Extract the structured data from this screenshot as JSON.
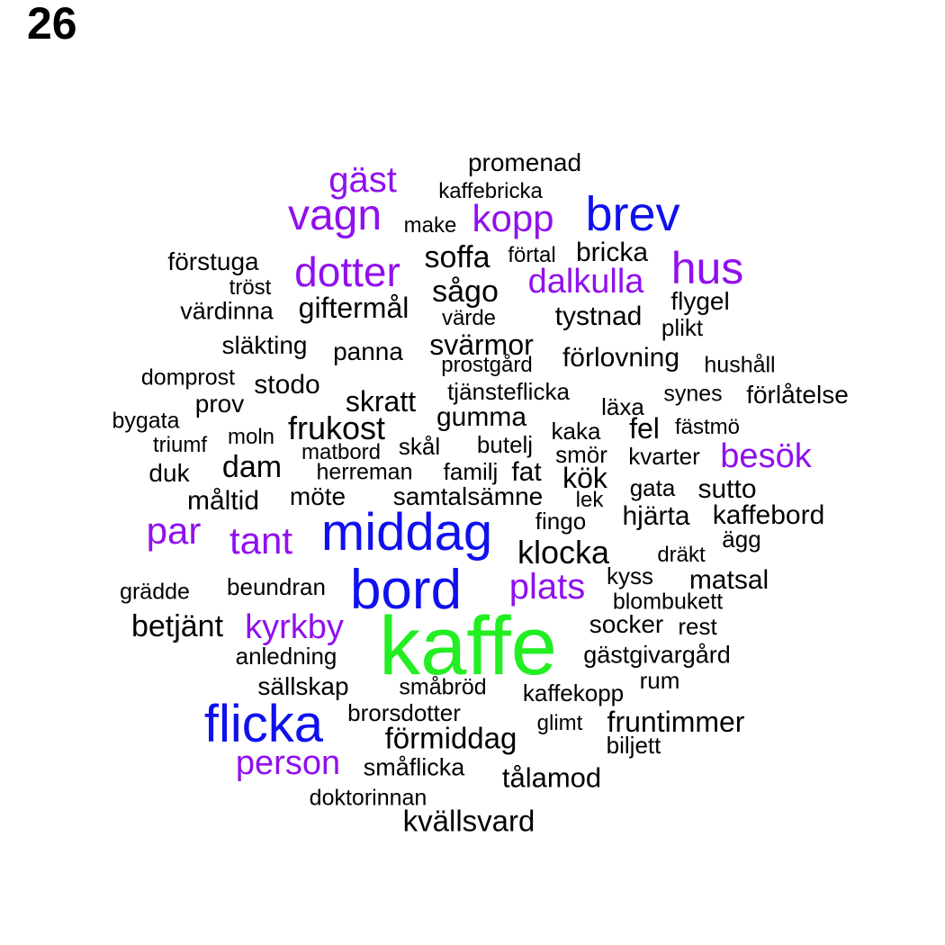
{
  "page_number": "26",
  "colors": {
    "top": "#22ee22",
    "high": "#1010ee",
    "mid": "#9010ee",
    "low": "#000000"
  },
  "words": [
    {
      "text": "kaffe",
      "tier": "top"
    },
    {
      "text": "bord",
      "tier": "high"
    },
    {
      "text": "middag",
      "tier": "high"
    },
    {
      "text": "flicka",
      "tier": "high"
    },
    {
      "text": "brev",
      "tier": "high"
    },
    {
      "text": "vagn",
      "tier": "mid"
    },
    {
      "text": "kopp",
      "tier": "mid"
    },
    {
      "text": "dotter",
      "tier": "mid"
    },
    {
      "text": "hus",
      "tier": "mid"
    },
    {
      "text": "gäst",
      "tier": "mid"
    },
    {
      "text": "dalkulla",
      "tier": "mid"
    },
    {
      "text": "par",
      "tier": "mid"
    },
    {
      "text": "tant",
      "tier": "mid"
    },
    {
      "text": "plats",
      "tier": "mid"
    },
    {
      "text": "kyrkby",
      "tier": "mid"
    },
    {
      "text": "person",
      "tier": "mid"
    },
    {
      "text": "besök",
      "tier": "mid"
    },
    {
      "text": "promenad",
      "tier": "low"
    },
    {
      "text": "kaffebricka",
      "tier": "low"
    },
    {
      "text": "make",
      "tier": "low"
    },
    {
      "text": "soffa",
      "tier": "low"
    },
    {
      "text": "förtal",
      "tier": "low"
    },
    {
      "text": "bricka",
      "tier": "low"
    },
    {
      "text": "förstuga",
      "tier": "low"
    },
    {
      "text": "tröst",
      "tier": "low"
    },
    {
      "text": "sågo",
      "tier": "low"
    },
    {
      "text": "flygel",
      "tier": "low"
    },
    {
      "text": "värdinna",
      "tier": "low"
    },
    {
      "text": "giftermål",
      "tier": "low"
    },
    {
      "text": "värde",
      "tier": "low"
    },
    {
      "text": "tystnad",
      "tier": "low"
    },
    {
      "text": "plikt",
      "tier": "low"
    },
    {
      "text": "släkting",
      "tier": "low"
    },
    {
      "text": "panna",
      "tier": "low"
    },
    {
      "text": "svärmor",
      "tier": "low"
    },
    {
      "text": "förlovning",
      "tier": "low"
    },
    {
      "text": "prostgård",
      "tier": "low"
    },
    {
      "text": "hushåll",
      "tier": "low"
    },
    {
      "text": "domprost",
      "tier": "low"
    },
    {
      "text": "stodo",
      "tier": "low"
    },
    {
      "text": "tjänsteflicka",
      "tier": "low"
    },
    {
      "text": "synes",
      "tier": "low"
    },
    {
      "text": "förlåtelse",
      "tier": "low"
    },
    {
      "text": "prov",
      "tier": "low"
    },
    {
      "text": "skratt",
      "tier": "low"
    },
    {
      "text": "läxa",
      "tier": "low"
    },
    {
      "text": "bygata",
      "tier": "low"
    },
    {
      "text": "gumma",
      "tier": "low"
    },
    {
      "text": "fel",
      "tier": "low"
    },
    {
      "text": "fästmö",
      "tier": "low"
    },
    {
      "text": "frukost",
      "tier": "low"
    },
    {
      "text": "kaka",
      "tier": "low"
    },
    {
      "text": "moln",
      "tier": "low"
    },
    {
      "text": "triumf",
      "tier": "low"
    },
    {
      "text": "skål",
      "tier": "low"
    },
    {
      "text": "butelj",
      "tier": "low"
    },
    {
      "text": "smör",
      "tier": "low"
    },
    {
      "text": "kvarter",
      "tier": "low"
    },
    {
      "text": "matbord",
      "tier": "low"
    },
    {
      "text": "dam",
      "tier": "low"
    },
    {
      "text": "duk",
      "tier": "low"
    },
    {
      "text": "herreman",
      "tier": "low"
    },
    {
      "text": "familj",
      "tier": "low"
    },
    {
      "text": "fat",
      "tier": "low"
    },
    {
      "text": "kök",
      "tier": "low"
    },
    {
      "text": "gata",
      "tier": "low"
    },
    {
      "text": "sutto",
      "tier": "low"
    },
    {
      "text": "möte",
      "tier": "low"
    },
    {
      "text": "måltid",
      "tier": "low"
    },
    {
      "text": "samtalsämne",
      "tier": "low"
    },
    {
      "text": "lek",
      "tier": "low"
    },
    {
      "text": "hjärta",
      "tier": "low"
    },
    {
      "text": "kaffebord",
      "tier": "low"
    },
    {
      "text": "fingo",
      "tier": "low"
    },
    {
      "text": "ägg",
      "tier": "low"
    },
    {
      "text": "klocka",
      "tier": "low"
    },
    {
      "text": "dräkt",
      "tier": "low"
    },
    {
      "text": "kyss",
      "tier": "low"
    },
    {
      "text": "matsal",
      "tier": "low"
    },
    {
      "text": "beundran",
      "tier": "low"
    },
    {
      "text": "grädde",
      "tier": "low"
    },
    {
      "text": "blombukett",
      "tier": "low"
    },
    {
      "text": "betjänt",
      "tier": "low"
    },
    {
      "text": "socker",
      "tier": "low"
    },
    {
      "text": "rest",
      "tier": "low"
    },
    {
      "text": "anledning",
      "tier": "low"
    },
    {
      "text": "gästgivargård",
      "tier": "low"
    },
    {
      "text": "rum",
      "tier": "low"
    },
    {
      "text": "sällskap",
      "tier": "low"
    },
    {
      "text": "småbröd",
      "tier": "low"
    },
    {
      "text": "kaffekopp",
      "tier": "low"
    },
    {
      "text": "brorsdotter",
      "tier": "low"
    },
    {
      "text": "glimt",
      "tier": "low"
    },
    {
      "text": "fruntimmer",
      "tier": "low"
    },
    {
      "text": "förmiddag",
      "tier": "low"
    },
    {
      "text": "biljett",
      "tier": "low"
    },
    {
      "text": "småflicka",
      "tier": "low"
    },
    {
      "text": "tålamod",
      "tier": "low"
    },
    {
      "text": "doktorinnan",
      "tier": "low"
    },
    {
      "text": "kvällsvard",
      "tier": "low"
    }
  ]
}
